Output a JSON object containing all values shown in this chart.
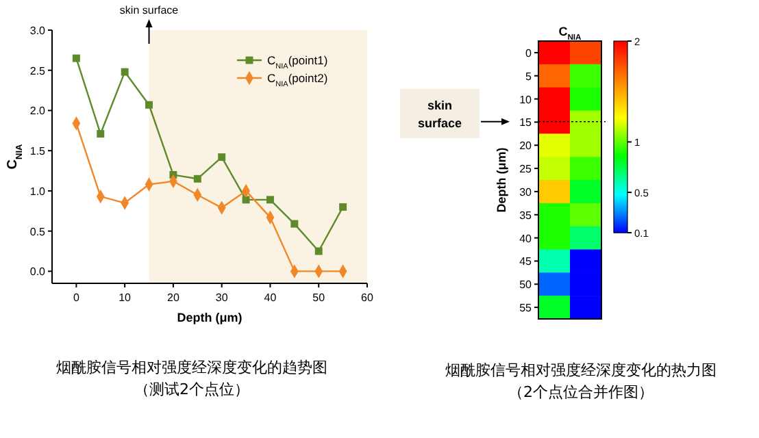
{
  "chart_data": [
    {
      "type": "line",
      "title": "烟酰胺信号相对强度经深度变化的趋势图",
      "subtitle": "（测试2个点位）",
      "xlabel": "Depth (μm)",
      "ylabel": "C$_{NIA}$",
      "x": [
        0,
        5,
        10,
        15,
        20,
        25,
        30,
        35,
        40,
        45,
        50,
        55
      ],
      "xlim": [
        -5,
        60
      ],
      "xticks": [
        0,
        10,
        20,
        30,
        40,
        50,
        60
      ],
      "ylim": [
        -0.15,
        3.0
      ],
      "yticks": [
        {
          "value": 0,
          "label": "0.0"
        },
        0.5,
        {
          "value": 1,
          "label": "1.0"
        },
        1.5,
        {
          "value": 2,
          "label": "2.0"
        },
        2.5,
        {
          "value": 3,
          "label": "3.0"
        }
      ],
      "legend": "top right",
      "grid": false,
      "series": [
        {
          "name": "C$_{NIA}$(point1)",
          "color": "#5e8a2a",
          "marker": "square",
          "values": [
            2.65,
            1.71,
            2.48,
            2.07,
            1.2,
            1.15,
            1.42,
            0.89,
            0.89,
            0.59,
            0.25,
            0.8
          ]
        },
        {
          "name": "C$_{NIA}$(point2)",
          "color": "#f0882a",
          "marker": "diamond",
          "values": [
            1.84,
            0.93,
            0.85,
            1.08,
            1.12,
            0.95,
            0.79,
            1.0,
            0.67,
            0.0,
            0.0,
            0.0
          ]
        }
      ],
      "bands": [
        {
          "axis": "x",
          "from": 15,
          "to": 60,
          "color": "#faf3e3"
        }
      ],
      "annotations": [
        {
          "text": "skin surface",
          "x": 15
        }
      ]
    },
    {
      "type": "heatmap",
      "title": "烟酰胺信号相对强度经深度变化的热力图",
      "subtitle": "（2个点位合并作图）",
      "ylabel": "Depth (μm)",
      "clabel": "C$_{NIA}$",
      "categories": [
        null,
        null
      ],
      "y_categories": [
        "0",
        "5",
        "10",
        "15",
        "20",
        "25",
        "30",
        "35",
        "40",
        "45",
        "50",
        "55"
      ],
      "cells": [
        [
          2,
          1.8
        ],
        [
          1.7,
          0.95
        ],
        [
          2,
          0.9
        ],
        [
          2,
          1.1
        ],
        [
          1.2,
          1.1
        ],
        [
          1.15,
          0.95
        ],
        [
          1.4,
          0.8
        ],
        [
          0.9,
          1.0
        ],
        [
          0.9,
          0.7
        ],
        [
          0.6,
          0.1
        ],
        [
          0.25,
          0.1
        ],
        [
          0.8,
          0.1
        ]
      ],
      "clim": [
        0.1,
        2
      ],
      "cticks": [
        0.1,
        0.5,
        1,
        2
      ],
      "annotations": [
        "skin surface"
      ]
    }
  ]
}
